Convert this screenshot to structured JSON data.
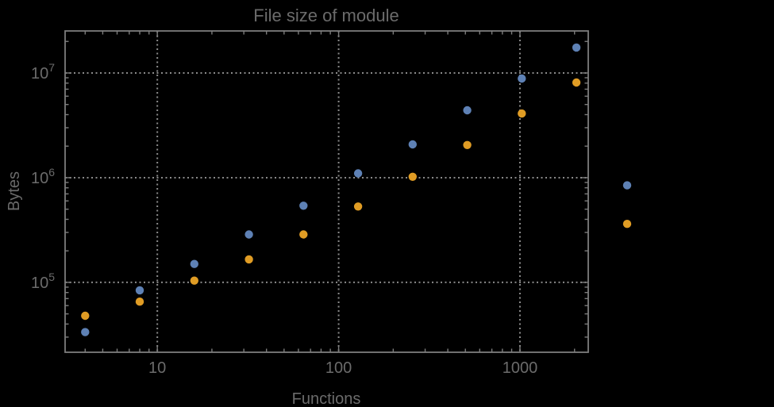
{
  "chart_data": {
    "type": "scatter",
    "title": "File size of module",
    "xlabel": "Functions",
    "ylabel": "Bytes",
    "x_scale": "log",
    "y_scale": "log",
    "grid": "dotted lines at decade ticks, on",
    "legend": "none",
    "xlim": [
      3.1,
      2380
    ],
    "ylim": [
      21500,
      25200000
    ],
    "x_ticks": [
      {
        "value": 10,
        "label": "10"
      },
      {
        "value": 100,
        "label": "100"
      },
      {
        "value": 1000,
        "label": "1000"
      }
    ],
    "y_ticks": [
      {
        "value": 100000,
        "base": "10",
        "exponent": "5"
      },
      {
        "value": 1000000,
        "base": "10",
        "exponent": "6"
      },
      {
        "value": 10000000,
        "base": "10",
        "exponent": "7"
      }
    ],
    "x": [
      4,
      8,
      16,
      32,
      64,
      128,
      256,
      512,
      1024,
      2048,
      3900
    ],
    "series": [
      {
        "name": "blue",
        "color": "#5E81B5",
        "values": [
          33500,
          84000,
          150000,
          287000,
          540000,
          1100000,
          2080000,
          4400000,
          8850000,
          17500000,
          845000
        ]
      },
      {
        "name": "orange",
        "color": "#E09C24",
        "values": [
          48000,
          65500,
          104000,
          166000,
          287000,
          530000,
          1020000,
          2050000,
          4100000,
          8100000,
          362000
        ]
      }
    ],
    "colors": {
      "background": "#000000",
      "frame": "#7d7d7d",
      "grid": "#8a8a8a",
      "text": "#6b6b6b"
    }
  }
}
